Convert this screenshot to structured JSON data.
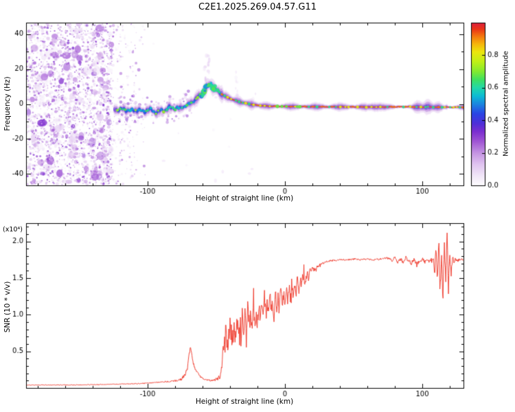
{
  "title": "C2E1.2025.269.04.57.G11",
  "chart_data": [
    {
      "type": "heatmap",
      "name": "spectrogram",
      "xlabel": "Height of straight line (km)",
      "ylabel": "Frequency (Hz)",
      "xlim": [
        -188.5,
        130
      ],
      "ylim": [
        -46.5,
        46.5
      ],
      "xticks": [
        -100,
        0,
        100
      ],
      "yticks": [
        -40,
        -20,
        0,
        20,
        40
      ],
      "colorbar": {
        "label": "Normalized spectral amplitude",
        "ticks": [
          0.0,
          0.2,
          0.4,
          0.6,
          0.8
        ],
        "range": [
          0,
          1
        ]
      },
      "colormap_stops": [
        [
          0.0,
          "#fdfcfe"
        ],
        [
          0.06,
          "#f1e6f8"
        ],
        [
          0.13,
          "#e0c4f0"
        ],
        [
          0.2,
          "#c493e2"
        ],
        [
          0.27,
          "#a055d4"
        ],
        [
          0.33,
          "#7c2fd0"
        ],
        [
          0.38,
          "#4f2ed8"
        ],
        [
          0.44,
          "#2a44e4"
        ],
        [
          0.5,
          "#1b86e0"
        ],
        [
          0.55,
          "#0cbcd4"
        ],
        [
          0.6,
          "#22d8a8"
        ],
        [
          0.65,
          "#3fe060"
        ],
        [
          0.7,
          "#83ea30"
        ],
        [
          0.76,
          "#c0f018"
        ],
        [
          0.82,
          "#ece60e"
        ],
        [
          0.87,
          "#f6b40c"
        ],
        [
          0.92,
          "#f3720f"
        ],
        [
          0.96,
          "#ea3517"
        ],
        [
          1.0,
          "#dc1f40"
        ]
      ],
      "noise_region": {
        "x_range": [
          -188.5,
          -100
        ],
        "freq_range": [
          -46.5,
          46.5
        ],
        "amplitude_range": [
          0.0,
          0.35
        ]
      },
      "ridge_points": [
        [
          -124,
          -2.5
        ],
        [
          -120,
          -3.5
        ],
        [
          -116,
          -2.8
        ],
        [
          -112,
          -4.2
        ],
        [
          -108,
          -3.0
        ],
        [
          -104,
          -4.5
        ],
        [
          -100,
          -3.2
        ],
        [
          -96,
          -4.0
        ],
        [
          -92,
          -4.6
        ],
        [
          -88,
          -3.2
        ],
        [
          -84,
          -2.4
        ],
        [
          -80,
          -2.0
        ],
        [
          -77,
          -2.6
        ],
        [
          -74,
          -1.6
        ],
        [
          -71,
          -0.6
        ],
        [
          -68,
          0.8
        ],
        [
          -65,
          2.6
        ],
        [
          -62,
          4.8
        ],
        [
          -59,
          7.5
        ],
        [
          -57,
          9.5
        ],
        [
          -55,
          11.0
        ],
        [
          -53,
          10.2
        ],
        [
          -51,
          8.8
        ],
        [
          -49,
          7.4
        ],
        [
          -47,
          6.2
        ],
        [
          -45,
          5.2
        ],
        [
          -43,
          4.3
        ],
        [
          -41,
          3.5
        ],
        [
          -39,
          2.9
        ],
        [
          -37,
          2.3
        ],
        [
          -35,
          1.8
        ],
        [
          -33,
          1.3
        ],
        [
          -31,
          0.9
        ],
        [
          -29,
          0.5
        ],
        [
          -27,
          0.2
        ],
        [
          -25,
          -0.1
        ],
        [
          -22,
          -0.5
        ],
        [
          -19,
          -0.8
        ],
        [
          -16,
          -1.0
        ],
        [
          -12,
          -1.2
        ],
        [
          -8,
          -1.3
        ],
        [
          -4,
          -1.35
        ],
        [
          0,
          -1.4
        ],
        [
          5,
          -1.45
        ],
        [
          10,
          -1.5
        ],
        [
          15,
          -1.5
        ],
        [
          20,
          -1.55
        ],
        [
          30,
          -1.6
        ],
        [
          40,
          -1.6
        ],
        [
          50,
          -1.65
        ],
        [
          60,
          -1.7
        ],
        [
          70,
          -1.7
        ],
        [
          80,
          -1.6
        ],
        [
          90,
          -1.55
        ],
        [
          95,
          -1.7
        ],
        [
          100,
          -1.8
        ],
        [
          105,
          -1.6
        ],
        [
          110,
          -1.9
        ],
        [
          115,
          -1.75
        ],
        [
          120,
          -1.85
        ],
        [
          125,
          -1.8
        ],
        [
          130,
          -1.8
        ]
      ]
    },
    {
      "type": "line",
      "name": "snr",
      "color": "#ee3224",
      "xlabel": "Height of straight line (km)",
      "ylabel": "SNR (10 * v/v)",
      "scale_label": "(x10⁴)",
      "xlim": [
        -188.5,
        130
      ],
      "ylim": [
        0,
        2.25
      ],
      "xticks": [
        -100,
        0,
        100
      ],
      "yticks": [
        0.5,
        1.0,
        1.5,
        2.0
      ],
      "points": [
        [
          -188.5,
          0.04
        ],
        [
          -160,
          0.04
        ],
        [
          -140,
          0.045
        ],
        [
          -125,
          0.05
        ],
        [
          -115,
          0.055
        ],
        [
          -105,
          0.06
        ],
        [
          -95,
          0.075
        ],
        [
          -88,
          0.085
        ],
        [
          -82,
          0.09
        ],
        [
          -78,
          0.1
        ],
        [
          -75,
          0.13
        ],
        [
          -73,
          0.18
        ],
        [
          -71,
          0.28
        ],
        [
          -70,
          0.42
        ],
        [
          -69,
          0.55
        ],
        [
          -68,
          0.46
        ],
        [
          -67,
          0.36
        ],
        [
          -66,
          0.29
        ],
        [
          -64,
          0.21
        ],
        [
          -62,
          0.16
        ],
        [
          -60,
          0.13
        ],
        [
          -57,
          0.11
        ],
        [
          -54,
          0.1
        ],
        [
          -51,
          0.11
        ],
        [
          -49,
          0.13
        ],
        [
          -47,
          0.17
        ],
        [
          -46,
          0.32
        ],
        [
          -45,
          0.55
        ],
        [
          -44.5,
          0.4
        ],
        [
          -44,
          0.68
        ],
        [
          -43.5,
          0.48
        ],
        [
          -43,
          0.85
        ],
        [
          -42.5,
          0.55
        ],
        [
          -42,
          0.74
        ],
        [
          -41.5,
          0.5
        ],
        [
          -41,
          0.9
        ],
        [
          -40.5,
          0.58
        ],
        [
          -40,
          1.0
        ],
        [
          -39.5,
          0.68
        ],
        [
          -39,
          0.88
        ],
        [
          -38.5,
          0.55
        ],
        [
          -38,
          0.8
        ],
        [
          -37.5,
          0.62
        ],
        [
          -37,
          0.95
        ],
        [
          -36.5,
          0.6
        ],
        [
          -36,
          0.88
        ],
        [
          -35.5,
          0.66
        ],
        [
          -35,
          0.84
        ],
        [
          -34.5,
          0.98
        ],
        [
          -34,
          0.72
        ],
        [
          -33.5,
          0.9
        ],
        [
          -33,
          0.6
        ],
        [
          -32.5,
          0.95
        ],
        [
          -32,
          0.55
        ],
        [
          -31.5,
          0.85
        ],
        [
          -31,
          1.0
        ],
        [
          -30.5,
          0.7
        ],
        [
          -30,
          0.6
        ],
        [
          -29.5,
          0.9
        ],
        [
          -29,
          1.05
        ],
        [
          -28.5,
          0.72
        ],
        [
          -28,
          0.65
        ],
        [
          -27.5,
          0.98
        ],
        [
          -27,
          1.1
        ],
        [
          -26,
          0.85
        ],
        [
          -25,
          1.0
        ],
        [
          -24,
          0.78
        ],
        [
          -23,
          1.1
        ],
        [
          -22,
          0.9
        ],
        [
          -21,
          1.05
        ],
        [
          -20,
          0.85
        ],
        [
          -19,
          1.15
        ],
        [
          -18,
          0.95
        ],
        [
          -17,
          1.1
        ],
        [
          -16,
          0.9
        ],
        [
          -15,
          1.2
        ],
        [
          -14,
          1.0
        ],
        [
          -13,
          1.15
        ],
        [
          -12,
          0.95
        ],
        [
          -11,
          1.25
        ],
        [
          -10,
          1.05
        ],
        [
          -9,
          1.2
        ],
        [
          -8,
          1.0
        ],
        [
          -7,
          1.3
        ],
        [
          -6,
          1.1
        ],
        [
          -5,
          1.25
        ],
        [
          -4,
          1.05
        ],
        [
          -3,
          1.35
        ],
        [
          -2,
          1.15
        ],
        [
          -1,
          1.3
        ],
        [
          0,
          1.12
        ],
        [
          1,
          1.4
        ],
        [
          2,
          1.2
        ],
        [
          3,
          1.35
        ],
        [
          4,
          1.18
        ],
        [
          5,
          1.45
        ],
        [
          6,
          1.25
        ],
        [
          7,
          1.4
        ],
        [
          8,
          1.3
        ],
        [
          9,
          1.5
        ],
        [
          10,
          1.35
        ],
        [
          11,
          1.45
        ],
        [
          12,
          1.4
        ],
        [
          13,
          1.55
        ],
        [
          14,
          1.45
        ],
        [
          15,
          1.5
        ],
        [
          16,
          1.56
        ],
        [
          17,
          1.5
        ],
        [
          18,
          1.6
        ],
        [
          19,
          1.56
        ],
        [
          20,
          1.62
        ],
        [
          22,
          1.6
        ],
        [
          24,
          1.66
        ],
        [
          26,
          1.68
        ],
        [
          28,
          1.71
        ],
        [
          30,
          1.72
        ],
        [
          33,
          1.74
        ],
        [
          36,
          1.74
        ],
        [
          40,
          1.75
        ],
        [
          45,
          1.75
        ],
        [
          50,
          1.76
        ],
        [
          55,
          1.75
        ],
        [
          60,
          1.76
        ],
        [
          65,
          1.75
        ],
        [
          70,
          1.76
        ],
        [
          75,
          1.77
        ],
        [
          78,
          1.74
        ],
        [
          80,
          1.78
        ],
        [
          82,
          1.7
        ],
        [
          84,
          1.77
        ],
        [
          86,
          1.72
        ],
        [
          88,
          1.78
        ],
        [
          90,
          1.74
        ],
        [
          92,
          1.7
        ],
        [
          94,
          1.76
        ],
        [
          96,
          1.68
        ],
        [
          98,
          1.74
        ],
        [
          100,
          1.76
        ],
        [
          102,
          1.73
        ],
        [
          104,
          1.75
        ],
        [
          106,
          1.72
        ],
        [
          108,
          1.76
        ],
        [
          109,
          1.6
        ],
        [
          110,
          1.85
        ],
        [
          111,
          1.45
        ],
        [
          112,
          2.0
        ],
        [
          113,
          1.3
        ],
        [
          114,
          1.9
        ],
        [
          115,
          1.2
        ],
        [
          116,
          2.05
        ],
        [
          117,
          1.4
        ],
        [
          118,
          2.15
        ],
        [
          119,
          1.25
        ],
        [
          120,
          1.85
        ],
        [
          121,
          1.55
        ],
        [
          122,
          1.8
        ],
        [
          123,
          1.7
        ],
        [
          124,
          1.76
        ],
        [
          126,
          1.74
        ],
        [
          128,
          1.76
        ],
        [
          130,
          1.75
        ]
      ],
      "noise_envelope": [
        [
          -188.5,
          0.005
        ],
        [
          -110,
          0.006
        ],
        [
          -90,
          0.008
        ],
        [
          -80,
          0.012
        ],
        [
          -72,
          0.03
        ],
        [
          -66,
          0.03
        ],
        [
          -60,
          0.012
        ],
        [
          -52,
          0.01
        ],
        [
          -48,
          0.03
        ],
        [
          -45,
          0.09
        ],
        [
          -40,
          0.12
        ],
        [
          -30,
          0.13
        ],
        [
          -20,
          0.12
        ],
        [
          -10,
          0.11
        ],
        [
          0,
          0.1
        ],
        [
          8,
          0.09
        ],
        [
          14,
          0.07
        ],
        [
          18,
          0.05
        ],
        [
          22,
          0.035
        ],
        [
          28,
          0.02
        ],
        [
          35,
          0.012
        ],
        [
          60,
          0.012
        ],
        [
          75,
          0.015
        ],
        [
          85,
          0.025
        ],
        [
          95,
          0.03
        ],
        [
          105,
          0.035
        ],
        [
          108,
          0.06
        ],
        [
          112,
          0.1
        ],
        [
          118,
          0.1
        ],
        [
          121,
          0.05
        ],
        [
          123,
          0.02
        ],
        [
          130,
          0.012
        ]
      ]
    }
  ]
}
